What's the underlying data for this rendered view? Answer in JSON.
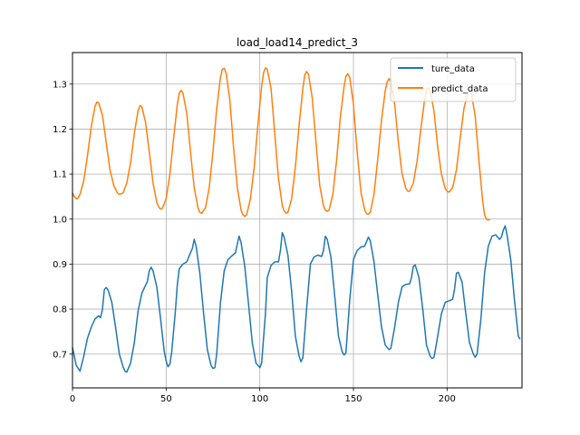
{
  "chart_data": {
    "type": "line",
    "title": "load_load14_predict_3",
    "xlabel": "",
    "ylabel": "",
    "xlim": [
      0,
      240
    ],
    "ylim": [
      0.625,
      1.37
    ],
    "grid": true,
    "legend": "top-right",
    "xticks": [
      0,
      50,
      100,
      150,
      200
    ],
    "xtick_labels": [
      "0",
      "50",
      "100",
      "150",
      "200"
    ],
    "yticks": [
      0.7,
      0.8,
      0.9,
      1.0,
      1.1,
      1.2,
      1.3
    ],
    "ytick_labels": [
      "0.7",
      "0.8",
      "0.9",
      "1.0",
      "1.1",
      "1.2",
      "1.3"
    ],
    "series": [
      {
        "name": "ture_data",
        "color": "#1f77b4",
        "points": [
          [
            0,
            0.715
          ],
          [
            2,
            0.675
          ],
          [
            4,
            0.662
          ],
          [
            6,
            0.695
          ],
          [
            8,
            0.735
          ],
          [
            10,
            0.76
          ],
          [
            12,
            0.778
          ],
          [
            14,
            0.785
          ],
          [
            15,
            0.781
          ],
          [
            16,
            0.8
          ],
          [
            17,
            0.843
          ],
          [
            18,
            0.848
          ],
          [
            19,
            0.842
          ],
          [
            21,
            0.815
          ],
          [
            23,
            0.76
          ],
          [
            25,
            0.7
          ],
          [
            27,
            0.672
          ],
          [
            28,
            0.662
          ],
          [
            29,
            0.66
          ],
          [
            31,
            0.68
          ],
          [
            33,
            0.725
          ],
          [
            35,
            0.795
          ],
          [
            37,
            0.835
          ],
          [
            39,
            0.853
          ],
          [
            40,
            0.862
          ],
          [
            41,
            0.885
          ],
          [
            42,
            0.893
          ],
          [
            43,
            0.885
          ],
          [
            45,
            0.85
          ],
          [
            47,
            0.78
          ],
          [
            49,
            0.705
          ],
          [
            50,
            0.685
          ],
          [
            51,
            0.672
          ],
          [
            52,
            0.678
          ],
          [
            53,
            0.705
          ],
          [
            55,
            0.8
          ],
          [
            56,
            0.855
          ],
          [
            57,
            0.89
          ],
          [
            59,
            0.9
          ],
          [
            61,
            0.905
          ],
          [
            62,
            0.915
          ],
          [
            64,
            0.935
          ],
          [
            65,
            0.955
          ],
          [
            66,
            0.94
          ],
          [
            68,
            0.88
          ],
          [
            70,
            0.79
          ],
          [
            72,
            0.71
          ],
          [
            74,
            0.675
          ],
          [
            75,
            0.668
          ],
          [
            76,
            0.67
          ],
          [
            77,
            0.7
          ],
          [
            79,
            0.815
          ],
          [
            81,
            0.885
          ],
          [
            83,
            0.91
          ],
          [
            85,
            0.918
          ],
          [
            87,
            0.925
          ],
          [
            88,
            0.945
          ],
          [
            89,
            0.962
          ],
          [
            90,
            0.948
          ],
          [
            92,
            0.895
          ],
          [
            94,
            0.81
          ],
          [
            96,
            0.725
          ],
          [
            98,
            0.68
          ],
          [
            100,
            0.67
          ],
          [
            101,
            0.68
          ],
          [
            103,
            0.79
          ],
          [
            104,
            0.87
          ],
          [
            106,
            0.897
          ],
          [
            108,
            0.905
          ],
          [
            110,
            0.905
          ],
          [
            111,
            0.93
          ],
          [
            112,
            0.97
          ],
          [
            113,
            0.96
          ],
          [
            115,
            0.92
          ],
          [
            117,
            0.84
          ],
          [
            119,
            0.74
          ],
          [
            121,
            0.695
          ],
          [
            122,
            0.683
          ],
          [
            123,
            0.692
          ],
          [
            125,
            0.8
          ],
          [
            127,
            0.9
          ],
          [
            129,
            0.916
          ],
          [
            131,
            0.92
          ],
          [
            133,
            0.917
          ],
          [
            134,
            0.93
          ],
          [
            135,
            0.962
          ],
          [
            136,
            0.955
          ],
          [
            138,
            0.915
          ],
          [
            140,
            0.83
          ],
          [
            142,
            0.74
          ],
          [
            144,
            0.705
          ],
          [
            145,
            0.698
          ],
          [
            146,
            0.703
          ],
          [
            148,
            0.82
          ],
          [
            150,
            0.91
          ],
          [
            152,
            0.93
          ],
          [
            154,
            0.938
          ],
          [
            156,
            0.94
          ],
          [
            157,
            0.95
          ],
          [
            158,
            0.96
          ],
          [
            159,
            0.952
          ],
          [
            161,
            0.905
          ],
          [
            163,
            0.83
          ],
          [
            165,
            0.76
          ],
          [
            167,
            0.72
          ],
          [
            169,
            0.71
          ],
          [
            170,
            0.713
          ],
          [
            172,
            0.76
          ],
          [
            174,
            0.815
          ],
          [
            176,
            0.85
          ],
          [
            178,
            0.855
          ],
          [
            180,
            0.856
          ],
          [
            181,
            0.87
          ],
          [
            182,
            0.895
          ],
          [
            183,
            0.898
          ],
          [
            185,
            0.87
          ],
          [
            187,
            0.8
          ],
          [
            189,
            0.72
          ],
          [
            191,
            0.695
          ],
          [
            192,
            0.69
          ],
          [
            193,
            0.693
          ],
          [
            195,
            0.74
          ],
          [
            197,
            0.79
          ],
          [
            199,
            0.815
          ],
          [
            201,
            0.818
          ],
          [
            203,
            0.822
          ],
          [
            204,
            0.845
          ],
          [
            205,
            0.88
          ],
          [
            206,
            0.882
          ],
          [
            208,
            0.86
          ],
          [
            210,
            0.79
          ],
          [
            212,
            0.725
          ],
          [
            214,
            0.7
          ],
          [
            215,
            0.693
          ],
          [
            216,
            0.7
          ],
          [
            218,
            0.775
          ],
          [
            220,
            0.88
          ],
          [
            222,
            0.94
          ],
          [
            224,
            0.962
          ],
          [
            226,
            0.965
          ],
          [
            228,
            0.955
          ],
          [
            229,
            0.96
          ],
          [
            230,
            0.975
          ],
          [
            231,
            0.985
          ],
          [
            232,
            0.965
          ],
          [
            234,
            0.91
          ],
          [
            236,
            0.82
          ],
          [
            238,
            0.74
          ],
          [
            239,
            0.733
          ]
        ]
      },
      {
        "name": "predict_data",
        "color": "#ff7f0e",
        "points": [
          [
            0,
            1.058
          ],
          [
            1,
            1.05
          ],
          [
            2,
            1.045
          ],
          [
            3,
            1.047
          ],
          [
            4,
            1.055
          ],
          [
            6,
            1.085
          ],
          [
            8,
            1.14
          ],
          [
            10,
            1.205
          ],
          [
            12,
            1.25
          ],
          [
            13,
            1.26
          ],
          [
            14,
            1.258
          ],
          [
            16,
            1.23
          ],
          [
            18,
            1.17
          ],
          [
            20,
            1.11
          ],
          [
            22,
            1.075
          ],
          [
            24,
            1.058
          ],
          [
            25,
            1.055
          ],
          [
            27,
            1.058
          ],
          [
            29,
            1.08
          ],
          [
            31,
            1.125
          ],
          [
            33,
            1.19
          ],
          [
            35,
            1.24
          ],
          [
            36,
            1.252
          ],
          [
            37,
            1.25
          ],
          [
            39,
            1.215
          ],
          [
            41,
            1.15
          ],
          [
            43,
            1.08
          ],
          [
            45,
            1.037
          ],
          [
            46,
            1.027
          ],
          [
            47,
            1.022
          ],
          [
            48,
            1.024
          ],
          [
            50,
            1.045
          ],
          [
            52,
            1.1
          ],
          [
            54,
            1.18
          ],
          [
            56,
            1.255
          ],
          [
            57,
            1.28
          ],
          [
            58,
            1.286
          ],
          [
            59,
            1.28
          ],
          [
            61,
            1.235
          ],
          [
            63,
            1.15
          ],
          [
            65,
            1.07
          ],
          [
            67,
            1.025
          ],
          [
            68,
            1.015
          ],
          [
            69,
            1.013
          ],
          [
            71,
            1.025
          ],
          [
            73,
            1.07
          ],
          [
            75,
            1.15
          ],
          [
            77,
            1.245
          ],
          [
            79,
            1.315
          ],
          [
            80,
            1.333
          ],
          [
            81,
            1.335
          ],
          [
            82,
            1.325
          ],
          [
            84,
            1.265
          ],
          [
            86,
            1.16
          ],
          [
            88,
            1.07
          ],
          [
            90,
            1.02
          ],
          [
            91,
            1.01
          ],
          [
            92,
            1.006
          ],
          [
            93,
            1.01
          ],
          [
            95,
            1.045
          ],
          [
            97,
            1.115
          ],
          [
            99,
            1.21
          ],
          [
            101,
            1.295
          ],
          [
            102,
            1.325
          ],
          [
            103,
            1.336
          ],
          [
            104,
            1.333
          ],
          [
            106,
            1.29
          ],
          [
            108,
            1.19
          ],
          [
            110,
            1.09
          ],
          [
            112,
            1.03
          ],
          [
            113,
            1.018
          ],
          [
            114,
            1.013
          ],
          [
            115,
            1.015
          ],
          [
            117,
            1.045
          ],
          [
            119,
            1.115
          ],
          [
            121,
            1.21
          ],
          [
            123,
            1.29
          ],
          [
            124,
            1.32
          ],
          [
            125,
            1.328
          ],
          [
            126,
            1.322
          ],
          [
            128,
            1.27
          ],
          [
            130,
            1.17
          ],
          [
            132,
            1.075
          ],
          [
            134,
            1.03
          ],
          [
            135,
            1.02
          ],
          [
            136,
            1.017
          ],
          [
            137,
            1.02
          ],
          [
            139,
            1.055
          ],
          [
            141,
            1.13
          ],
          [
            143,
            1.225
          ],
          [
            145,
            1.295
          ],
          [
            146,
            1.317
          ],
          [
            147,
            1.323
          ],
          [
            148,
            1.315
          ],
          [
            150,
            1.255
          ],
          [
            152,
            1.15
          ],
          [
            154,
            1.06
          ],
          [
            156,
            1.02
          ],
          [
            157,
            1.012
          ],
          [
            158,
            1.011
          ],
          [
            159,
            1.015
          ],
          [
            161,
            1.055
          ],
          [
            163,
            1.135
          ],
          [
            165,
            1.22
          ],
          [
            167,
            1.285
          ],
          [
            168,
            1.305
          ],
          [
            169,
            1.312
          ],
          [
            170,
            1.305
          ],
          [
            172,
            1.255
          ],
          [
            174,
            1.17
          ],
          [
            176,
            1.1
          ],
          [
            178,
            1.068
          ],
          [
            179,
            1.062
          ],
          [
            180,
            1.062
          ],
          [
            182,
            1.08
          ],
          [
            184,
            1.13
          ],
          [
            186,
            1.2
          ],
          [
            188,
            1.265
          ],
          [
            189,
            1.285
          ],
          [
            190,
            1.292
          ],
          [
            191,
            1.285
          ],
          [
            193,
            1.24
          ],
          [
            195,
            1.16
          ],
          [
            197,
            1.1
          ],
          [
            199,
            1.068
          ],
          [
            200,
            1.062
          ],
          [
            201,
            1.06
          ],
          [
            203,
            1.07
          ],
          [
            205,
            1.11
          ],
          [
            207,
            1.18
          ],
          [
            209,
            1.245
          ],
          [
            211,
            1.28
          ],
          [
            212,
            1.285
          ],
          [
            213,
            1.278
          ],
          [
            215,
            1.23
          ],
          [
            217,
            1.13
          ],
          [
            219,
            1.04
          ],
          [
            220,
            1.01
          ],
          [
            221,
            1.0
          ],
          [
            222,
            0.998
          ],
          [
            223,
            1.0
          ]
        ]
      }
    ]
  }
}
